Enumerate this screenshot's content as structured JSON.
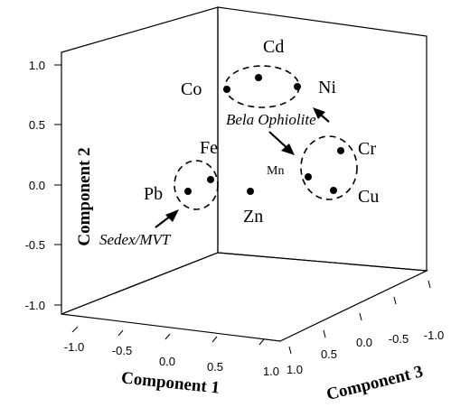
{
  "chart_data": {
    "type": "scatter",
    "projection": "3d",
    "axes": {
      "component_1": {
        "label": "Component 1",
        "ticks": [
          "-1.0",
          "-0.5",
          "0.0",
          "0.5",
          "1.0"
        ]
      },
      "component_2": {
        "label": "Component 2",
        "ticks": [
          "1.0",
          "0.5",
          "0.0",
          "-0.5",
          "-1.0"
        ]
      },
      "component_3": {
        "label": "Component 3",
        "ticks": [
          "1.0",
          "0.5",
          "0.0",
          "-0.5",
          "-1.0"
        ]
      }
    },
    "points": [
      {
        "label": "Cd",
        "group": "Bela Ophiolite"
      },
      {
        "label": "Co",
        "group": "Bela Ophiolite"
      },
      {
        "label": "Ni",
        "group": "Bela Ophiolite"
      },
      {
        "label": "Cr",
        "group": "Bela Ophiolite"
      },
      {
        "label": "Mn",
        "group": "Bela Ophiolite"
      },
      {
        "label": "Cu",
        "group": "Bela Ophiolite"
      },
      {
        "label": "Fe",
        "group": "Sedex/MVT"
      },
      {
        "label": "Pb",
        "group": "Sedex/MVT"
      },
      {
        "label": "Zn",
        "group": ""
      }
    ],
    "annotations": [
      "Bela Ophiolite",
      "Sedex/MVT"
    ]
  }
}
